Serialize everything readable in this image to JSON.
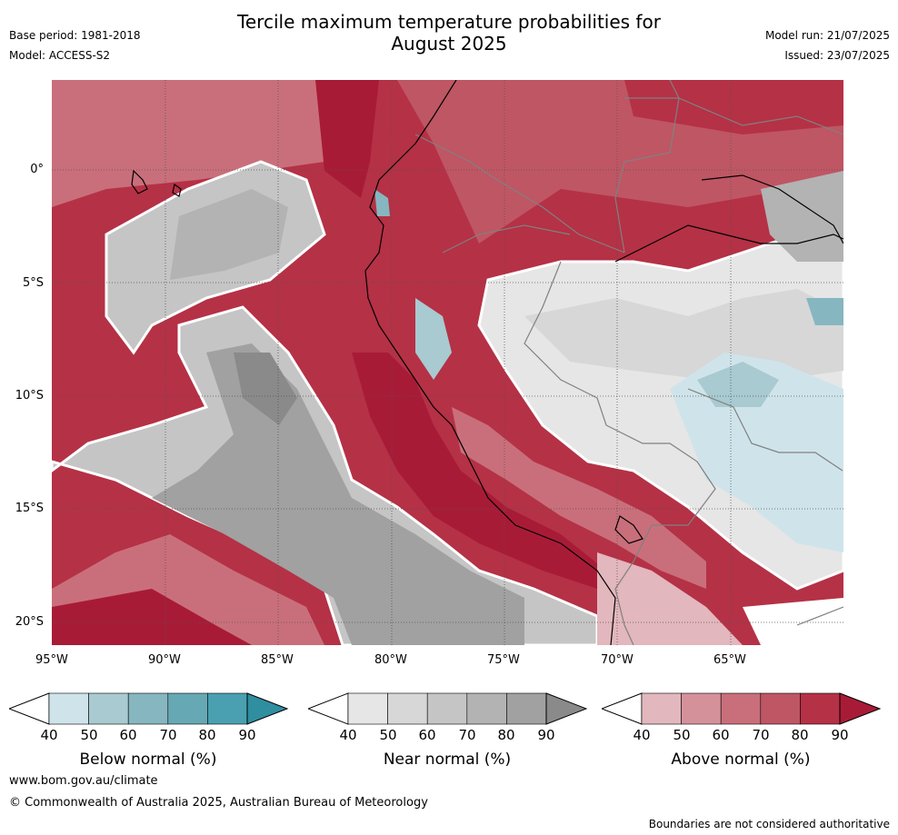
{
  "header": {
    "title_line1": "Tercile maximum temperature probabilities for",
    "title_line2": "August 2025",
    "base_period": "Base period: 1981-2018",
    "model": "Model: ACCESS-S2",
    "model_run": "Model run: 21/07/2025",
    "issued": "Issued: 23/07/2025"
  },
  "map": {
    "lat_labels": [
      "0°",
      "5°S",
      "10°S",
      "15°S",
      "20°S"
    ],
    "lon_labels": [
      "95°W",
      "90°W",
      "85°W",
      "80°W",
      "75°W",
      "70°W",
      "65°W"
    ],
    "colors": {
      "above": [
        "#e2b7bd",
        "#d5919a",
        "#c96f7b",
        "#bf5664",
        "#b53146",
        "#a81b37"
      ],
      "near": [
        "#e6e6e6",
        "#d7d7d7",
        "#c5c5c5",
        "#b3b3b3",
        "#a1a1a1",
        "#8a8a8a"
      ],
      "below": [
        "#cfe4ea",
        "#a8cad0",
        "#86b6c0",
        "#67a8b5",
        "#4aa0b0",
        "#2f8ea0"
      ],
      "boundary": "#ffffff",
      "coastline": "#000000",
      "borders": "#808080"
    }
  },
  "colorbars": [
    {
      "title": "Below normal (%)",
      "ticks": [
        "40",
        "50",
        "60",
        "70",
        "80",
        "90"
      ],
      "colors": [
        "#cfe4ea",
        "#a8cad0",
        "#86b6c0",
        "#67a8b5",
        "#4aa0b0",
        "#2f8ea0"
      ]
    },
    {
      "title": "Near normal (%)",
      "ticks": [
        "40",
        "50",
        "60",
        "70",
        "80",
        "90"
      ],
      "colors": [
        "#e6e6e6",
        "#d7d7d7",
        "#c5c5c5",
        "#b3b3b3",
        "#a1a1a1",
        "#8a8a8a"
      ]
    },
    {
      "title": "Above normal (%)",
      "ticks": [
        "40",
        "50",
        "60",
        "70",
        "80",
        "90"
      ],
      "colors": [
        "#e2b7bd",
        "#d5919a",
        "#c96f7b",
        "#bf5664",
        "#b53146",
        "#a81b37"
      ]
    }
  ],
  "footer": {
    "url": "www.bom.gov.au/climate",
    "copyright": "© Commonwealth of Australia 2025, Australian Bureau of Meteorology",
    "disclaimer": "Boundaries are not considered authoritative"
  }
}
